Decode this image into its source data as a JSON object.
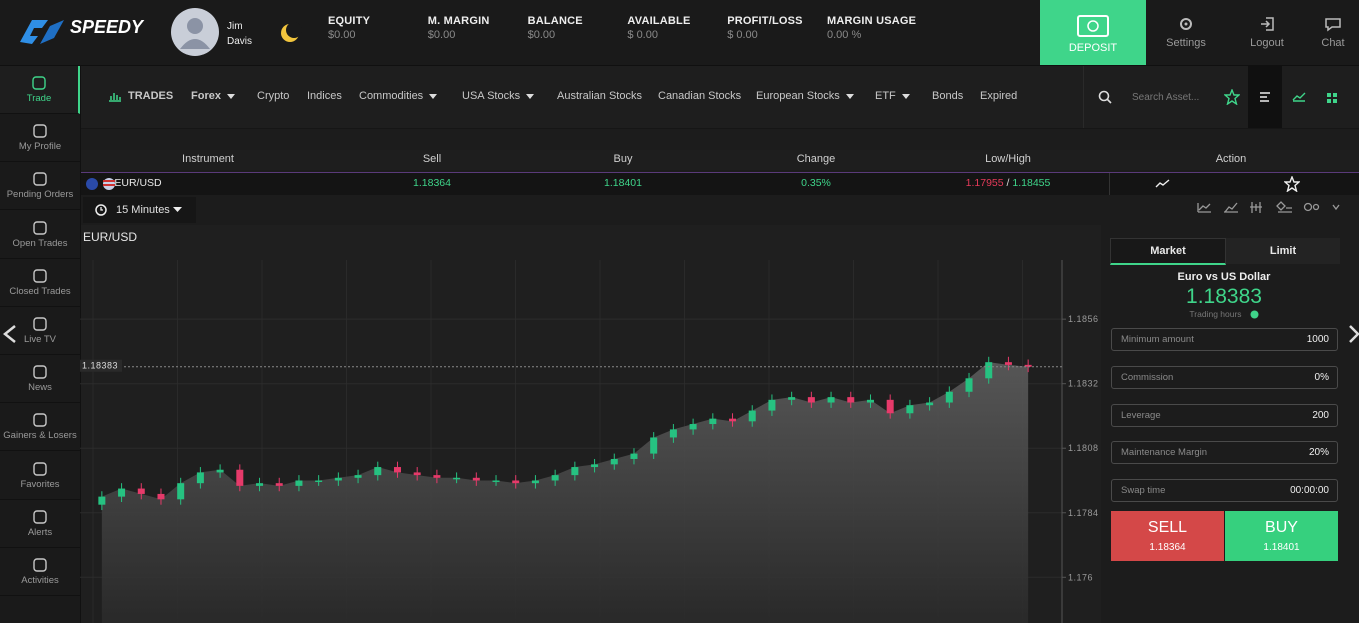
{
  "header": {
    "brand": "SPEEDY",
    "user": {
      "first": "Jim",
      "last": "Davis"
    },
    "stats": [
      {
        "label": "EQUITY",
        "value": "$0.00"
      },
      {
        "label": "M. MARGIN",
        "value": "$0.00"
      },
      {
        "label": "BALANCE",
        "value": "$0.00"
      },
      {
        "label": "AVAILABLE",
        "value": "$ 0.00"
      },
      {
        "label": "PROFIT/LOSS",
        "value": "$ 0.00"
      },
      {
        "label": "MARGIN USAGE",
        "value": "0.00 %"
      }
    ],
    "deposit": "DEPOSIT",
    "settings": "Settings",
    "logout": "Logout",
    "chat": "Chat"
  },
  "sidebar": [
    "Trade",
    "My Profile",
    "Pending Orders",
    "Open Trades",
    "Closed Trades",
    "Live TV",
    "News",
    "Gainers & Losers",
    "Favorites",
    "Alerts",
    "Activities"
  ],
  "nav": {
    "trades": "TRADES",
    "items": [
      "Forex",
      "Crypto",
      "Indices",
      "Commodities",
      "USA Stocks",
      "Australian Stocks",
      "Canadian Stocks",
      "European Stocks",
      "ETF",
      "Bonds",
      "Expired"
    ],
    "search": "Search Asset..."
  },
  "table": {
    "headers": [
      "Instrument",
      "Sell",
      "Buy",
      "Change",
      "Low/High",
      "Action"
    ],
    "rows": [
      {
        "instrument": "EUR/USD",
        "sell": "1.18364",
        "buy": "1.18401",
        "change": "0.35%",
        "low": "1.17955",
        "separator": "/",
        "high": "1.18455"
      }
    ]
  },
  "toolbar": {
    "interval": "15 Minutes"
  },
  "chart_data": {
    "type": "candlestick",
    "title": "EUR/USD",
    "up_color": "#26c281",
    "down_color": "#e63a6a",
    "open": [
      1.1787,
      1.179,
      1.1793,
      1.1791,
      1.1789,
      1.1795,
      1.1799,
      1.18,
      1.1794,
      1.1795,
      1.1794,
      1.1796,
      1.1796,
      1.1797,
      1.1798,
      1.1801,
      1.1799,
      1.1798,
      1.1797,
      1.1797,
      1.1796,
      1.1796,
      1.1795,
      1.1796,
      1.1798,
      1.1801,
      1.1802,
      1.1804,
      1.1806,
      1.1812,
      1.1815,
      1.1817,
      1.1819,
      1.1818,
      1.1822,
      1.1826,
      1.1827,
      1.1825,
      1.1827,
      1.1825,
      1.1826,
      1.1821,
      1.1824,
      1.1825,
      1.1829,
      1.1834,
      1.184,
      1.1839
    ],
    "high": [
      1.1792,
      1.1795,
      1.1795,
      1.1793,
      1.1797,
      1.1801,
      1.1802,
      1.1802,
      1.1797,
      1.1797,
      1.1798,
      1.1798,
      1.1799,
      1.18,
      1.1803,
      1.1803,
      1.1801,
      1.18,
      1.1799,
      1.1799,
      1.1798,
      1.1798,
      1.1798,
      1.18,
      1.1803,
      1.1804,
      1.1806,
      1.1808,
      1.1814,
      1.1817,
      1.1819,
      1.1821,
      1.1821,
      1.1824,
      1.1828,
      1.1829,
      1.1829,
      1.1829,
      1.1829,
      1.1828,
      1.1828,
      1.1826,
      1.1827,
      1.1831,
      1.1836,
      1.1842,
      1.1842,
      1.1841
    ],
    "low": [
      1.1785,
      1.1788,
      1.1789,
      1.1787,
      1.1787,
      1.1793,
      1.1797,
      1.1792,
      1.1792,
      1.1792,
      1.1792,
      1.1794,
      1.1794,
      1.1795,
      1.1796,
      1.1797,
      1.1796,
      1.1795,
      1.1795,
      1.1794,
      1.1794,
      1.1793,
      1.1793,
      1.1794,
      1.1796,
      1.1799,
      1.18,
      1.1802,
      1.1804,
      1.181,
      1.1813,
      1.1815,
      1.1816,
      1.1816,
      1.182,
      1.1824,
      1.1823,
      1.1823,
      1.1823,
      1.1823,
      1.1819,
      1.1819,
      1.1822,
      1.1823,
      1.1827,
      1.1832,
      1.1837,
      1.18363
    ],
    "close": [
      1.179,
      1.1793,
      1.1791,
      1.1789,
      1.1795,
      1.1799,
      1.18,
      1.1794,
      1.1795,
      1.1794,
      1.1796,
      1.1796,
      1.1797,
      1.1798,
      1.1801,
      1.1799,
      1.1798,
      1.1797,
      1.1797,
      1.1796,
      1.1796,
      1.1795,
      1.1796,
      1.1798,
      1.1801,
      1.1802,
      1.1804,
      1.1806,
      1.1812,
      1.1815,
      1.1817,
      1.1819,
      1.1818,
      1.1822,
      1.1826,
      1.1827,
      1.1825,
      1.1827,
      1.1825,
      1.1826,
      1.1821,
      1.1824,
      1.1825,
      1.1829,
      1.1834,
      1.184,
      1.1839,
      1.18383
    ],
    "current_price": 1.18383,
    "ylim": [
      1.1743,
      1.1878
    ],
    "yticks": [
      1.1856,
      1.1832,
      1.1808,
      1.1784,
      1.176
    ],
    "grid": true
  },
  "order_panel": {
    "tabs": [
      "Market",
      "Limit"
    ],
    "name": "Euro vs US Dollar",
    "price": "1.18383",
    "hours": "Trading hours",
    "fields": [
      {
        "label": "Minimum amount",
        "value": "1000"
      },
      {
        "label": "Commission",
        "value": "0%"
      },
      {
        "label": "Leverage",
        "value": "200"
      },
      {
        "label": "Maintenance Margin",
        "value": "20%"
      },
      {
        "label": "Swap time",
        "value": "00:00:00"
      }
    ],
    "sell": {
      "label": "SELL",
      "price": "1.18364"
    },
    "buy": {
      "label": "BUY",
      "price": "1.18401"
    }
  }
}
